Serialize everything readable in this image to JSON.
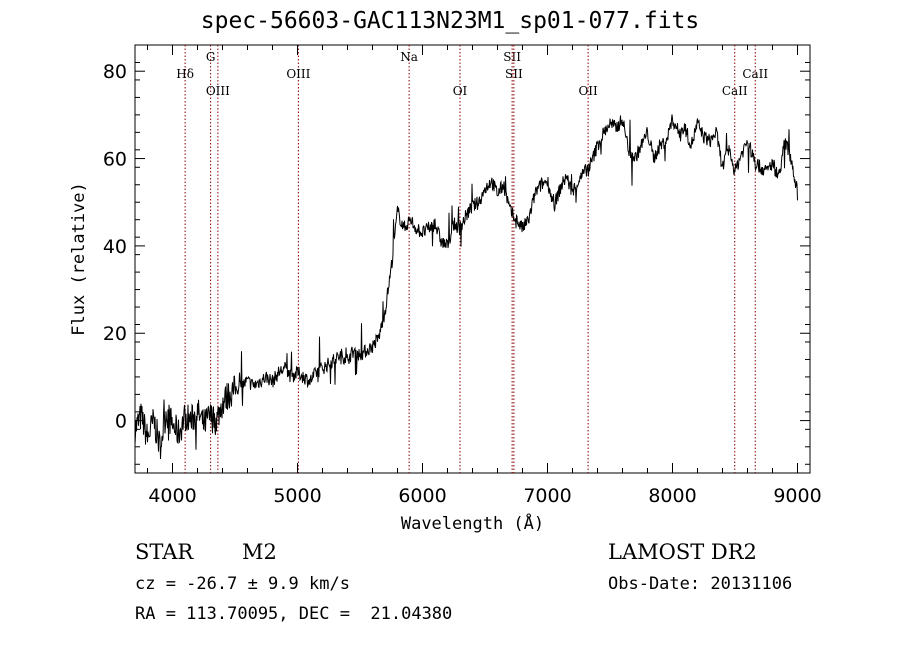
{
  "chart_data": {
    "type": "line",
    "title": "spec-56603-GAC113N23M1_sp01-077.fits",
    "xlabel": "Wavelength (Å)",
    "ylabel": "Flux (relative)",
    "xlim": [
      3700,
      9100
    ],
    "ylim": [
      -12,
      86
    ],
    "x_ticks": [
      4000,
      5000,
      6000,
      7000,
      8000,
      9000
    ],
    "y_ticks": [
      0,
      20,
      40,
      60,
      80
    ],
    "grid": false,
    "line_color": "#000000",
    "marker_color": "#8b0000",
    "series": [
      {
        "x": [
          3700,
          3750,
          3800,
          3850,
          3900,
          3950,
          4000,
          4050,
          4100,
          4150,
          4200,
          4250,
          4300,
          4350,
          4400,
          4450,
          4500,
          4550,
          4600,
          4650,
          4700,
          4750,
          4800,
          4850,
          4900,
          4950,
          5000,
          5050,
          5100,
          5150,
          5200,
          5250,
          5300,
          5350,
          5400,
          5450,
          5500,
          5550,
          5600,
          5650,
          5700,
          5750,
          5800,
          5850,
          5900,
          5950,
          6000,
          6050,
          6100,
          6150,
          6200,
          6250,
          6300,
          6350,
          6400,
          6450,
          6500,
          6550,
          6600,
          6650,
          6700,
          6750,
          6800,
          6850,
          6900,
          6950,
          7000,
          7050,
          7100,
          7150,
          7200,
          7250,
          7300,
          7350,
          7400,
          7450,
          7500,
          7550,
          7600,
          7650,
          7700,
          7750,
          7800,
          7850,
          7900,
          7950,
          8000,
          8050,
          8100,
          8150,
          8200,
          8250,
          8300,
          8350,
          8400,
          8450,
          8500,
          8550,
          8600,
          8650,
          8700,
          8750,
          8800,
          8850,
          8900,
          8950,
          9000
        ],
        "y": [
          -2,
          1,
          -4,
          0,
          -6,
          2,
          -1,
          -3,
          1,
          0,
          2,
          -1,
          1,
          0,
          4,
          6,
          7,
          8,
          9,
          8,
          9,
          10,
          9,
          11,
          12,
          10,
          11,
          10,
          9,
          11,
          12,
          13,
          14,
          15,
          14,
          16,
          15,
          16,
          17,
          19,
          25,
          35,
          48,
          44,
          46,
          44,
          43,
          44,
          45,
          41,
          40,
          45,
          44,
          47,
          49,
          50,
          53,
          55,
          52,
          54,
          48,
          46,
          44,
          46,
          52,
          54,
          55,
          49,
          53,
          56,
          52,
          55,
          57,
          59,
          63,
          66,
          68,
          67,
          69,
          62,
          60,
          63,
          66,
          60,
          63,
          64,
          69,
          66,
          67,
          63,
          68,
          65,
          64,
          66,
          58,
          62,
          57,
          61,
          64,
          60,
          58,
          57,
          59,
          56,
          64,
          60,
          52
        ]
      }
    ],
    "lines": [
      {
        "label": "Hδ",
        "x": 4101,
        "row": 2
      },
      {
        "label": "G",
        "x": 4305,
        "row": 1
      },
      {
        "label": "OIII",
        "x": 4363,
        "row": 3
      },
      {
        "label": "OIII",
        "x": 5007,
        "row": 2
      },
      {
        "label": "Na",
        "x": 5893,
        "row": 1
      },
      {
        "label": "OI",
        "x": 6300,
        "row": 3
      },
      {
        "label": "SII",
        "x": 6717,
        "row": 1
      },
      {
        "label": "SII",
        "x": 6731,
        "row": 2
      },
      {
        "label": "OII",
        "x": 7325,
        "row": 3
      },
      {
        "label": "CaII",
        "x": 8498,
        "row": 3
      },
      {
        "label": "CaII",
        "x": 8662,
        "row": 2
      }
    ]
  },
  "info": {
    "object_class": "STAR",
    "subclass": "M2",
    "survey": "LAMOST DR2",
    "cz": "cz = -26.7 ± 9.9 km/s",
    "obs_date": "Obs-Date: 20131106",
    "coords": "RA = 113.70095, DEC =  21.04380"
  }
}
